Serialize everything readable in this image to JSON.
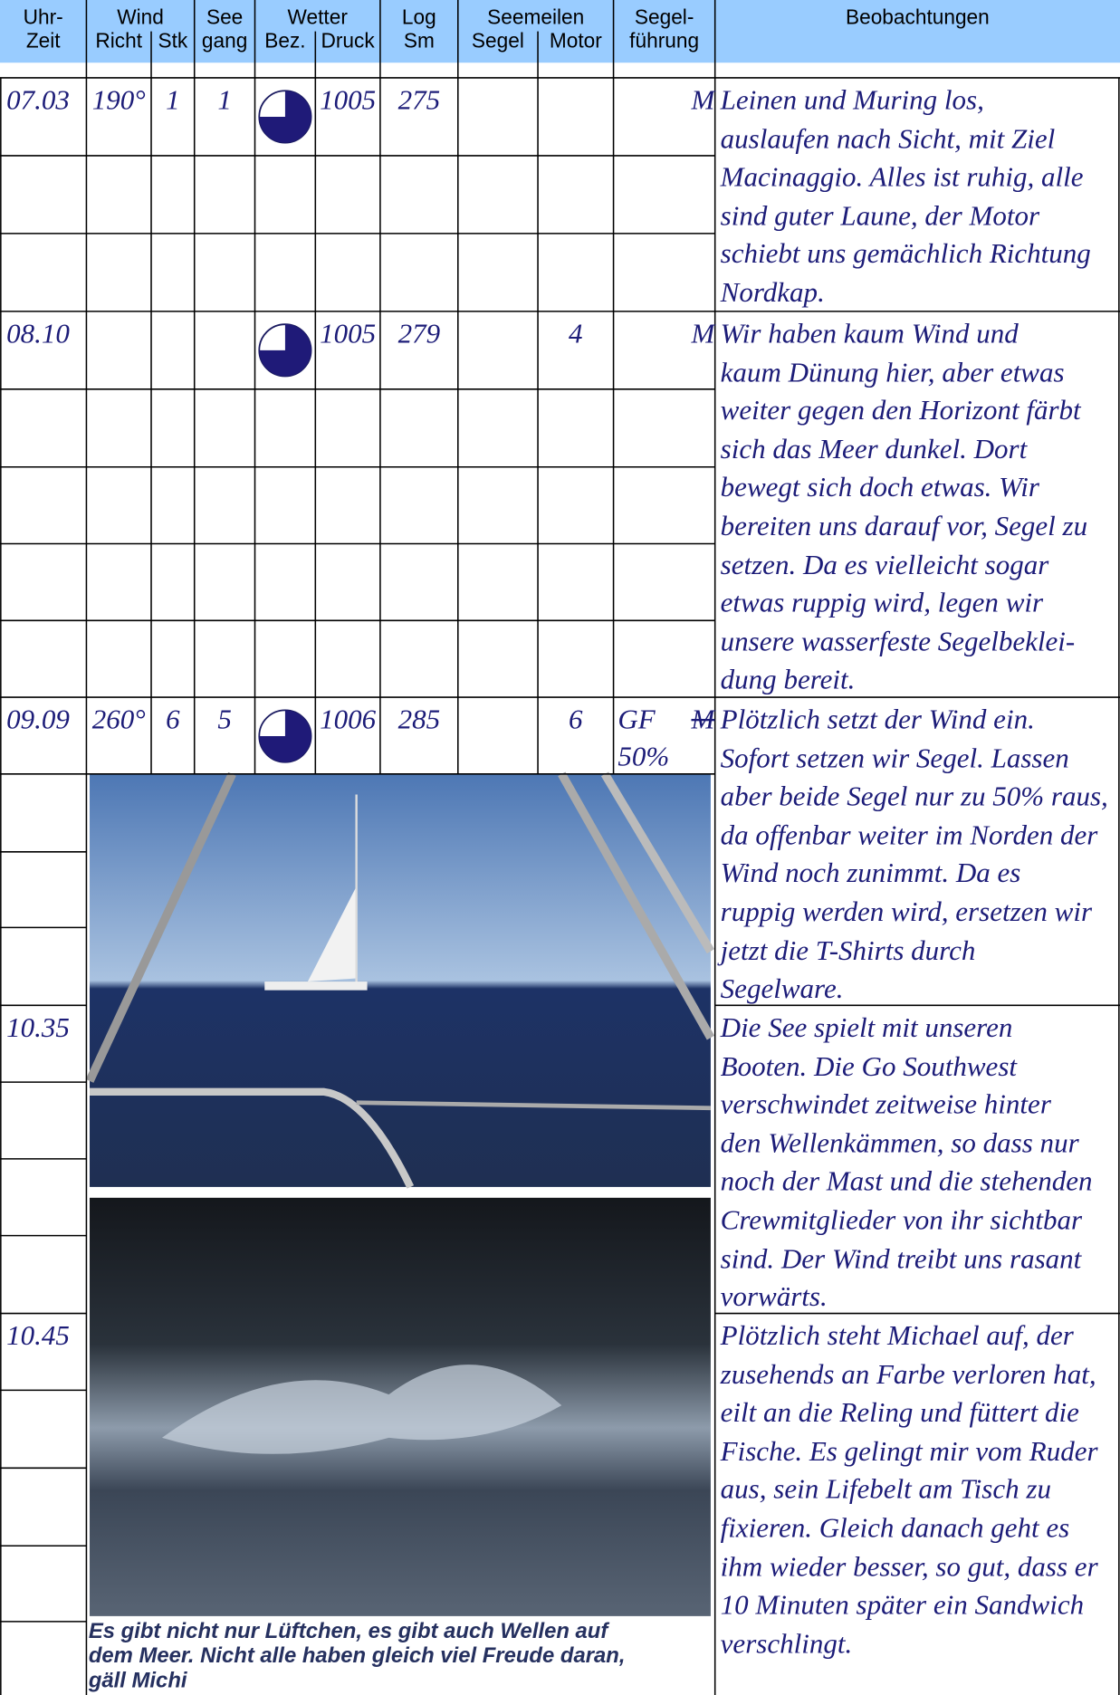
{
  "header": {
    "time": [
      "Uhr-",
      "Zeit"
    ],
    "wind": "Wind",
    "wind_dir": "Richt",
    "wind_force": "Stk",
    "sea": [
      "See",
      "gang"
    ],
    "weather": "Wetter",
    "weather_code": "Bez.",
    "pressure": "Druck",
    "log": [
      "Log",
      "Sm"
    ],
    "miles": "Seemeilen",
    "miles_sail": "Segel",
    "miles_motor": "Motor",
    "sails": [
      "Segel-",
      "führung"
    ],
    "observations": "Beobachtungen"
  },
  "entries": [
    {
      "time": "07.03",
      "wind_dir": "190°",
      "wind_force": "1",
      "sea": "1",
      "pressure": "1005",
      "log": "275",
      "sails": [
        "M"
      ],
      "observations": [
        "Leinen und Muring los,",
        "auslaufen nach Sicht, mit Ziel",
        "Macinaggio. Alles ist ruhig, alle",
        "sind guter Laune, der Motor",
        "schiebt uns gemächlich Richtung",
        "Nordkap."
      ]
    },
    {
      "time": "08.10",
      "pressure": "1005",
      "log": "279",
      "miles_motor": "4",
      "sails": [
        "M"
      ],
      "observations": [
        "Wir haben kaum Wind und",
        "kaum Dünung hier, aber etwas",
        "weiter gegen den Horizont färbt",
        "sich das Meer dunkel. Dort",
        "bewegt sich doch etwas. Wir",
        "bereiten uns darauf vor, Segel zu",
        "setzen. Da es vielleicht sogar",
        "etwas ruppig wird, legen wir",
        "unsere wasserfeste Segelbeklei-",
        "dung bereit."
      ]
    },
    {
      "time": "09.09",
      "wind_dir": "260°",
      "wind_force": "6",
      "sea": "5",
      "pressure": "1006",
      "log": "285",
      "miles_motor": "6",
      "sails": [
        "GF",
        "50%"
      ],
      "struck": "M",
      "observations": [
        "Plötzlich setzt der Wind ein.",
        "Sofort setzen wir Segel. Lassen",
        "aber beide Segel nur zu 50% raus,",
        "da offenbar weiter im Norden der",
        "Wind noch zunimmt. Da es",
        "ruppig werden wird, ersetzen wir",
        "jetzt die T-Shirts durch",
        "Segelware."
      ]
    },
    {
      "time": "10.35",
      "observations": [
        "Die See spielt mit unseren",
        "Booten. Die Go Southwest",
        "verschwindet zeitweise hinter",
        "den Wellenkämmen, so dass nur",
        "noch der Mast und die stehenden",
        "Crewmitglieder von ihr sichtbar",
        "sind. Der Wind treibt uns rasant",
        "vorwärts."
      ]
    },
    {
      "time": "10.45",
      "observations": [
        "Plötzlich steht Michael auf, der",
        "zusehends an Farbe verloren hat,",
        "eilt an die Reling und füttert die",
        "Fische. Es gelingt mir vom Ruder",
        "aus, sein Lifebelt am Tisch zu",
        "fixieren. Gleich danach geht es",
        "ihm wieder besser, so gut, dass er",
        "10 Minuten später ein Sandwich",
        "verschlingt."
      ]
    }
  ],
  "caption": [
    "Es gibt nicht nur Lüftchen, es gibt auch Wellen auf",
    "dem Meer. Nicht alle haben gleich viel Freude daran,",
    "gäll Michi"
  ]
}
